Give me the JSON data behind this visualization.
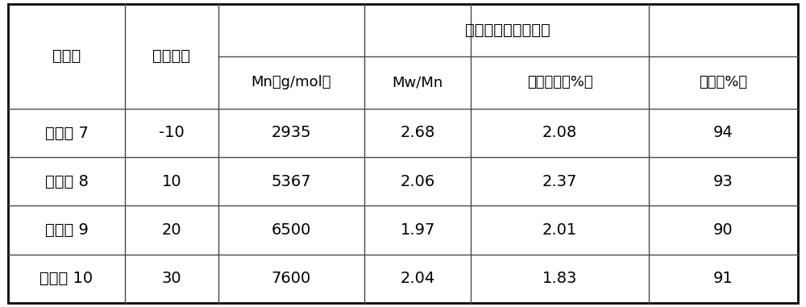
{
  "title": "端羧基液体氟弹性体",
  "col1_header": "实施例",
  "col2_header": "反应温度",
  "sub_headers": [
    "Mn（g/mol）",
    "Mw/Mn",
    "羧基含量（%）",
    "产率（%）"
  ],
  "rows": [
    [
      "实施例 7",
      "-10",
      "2935",
      "2.68",
      "2.08",
      "94"
    ],
    [
      "实施例 8",
      "10",
      "5367",
      "2.06",
      "2.37",
      "93"
    ],
    [
      "实施例 9",
      "20",
      "6500",
      "1.97",
      "2.01",
      "90"
    ],
    [
      "实施例 10",
      "30",
      "7600",
      "2.04",
      "1.83",
      "91"
    ]
  ],
  "bg_color": "#ffffff",
  "text_color": "#000000",
  "border_color": "#4a4a4a",
  "font_size": 14,
  "sub_font_size": 13
}
